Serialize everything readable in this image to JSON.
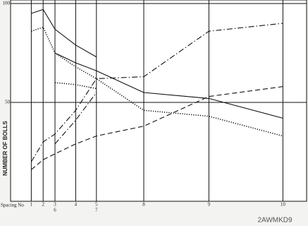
{
  "chart_data": {
    "type": "line",
    "y_label": "NUMBER OF BOLLS",
    "x_label": "Spacing No",
    "xlim": [
      0,
      100
    ],
    "ylim": [
      0,
      100
    ],
    "xticks": [
      {
        "value": 7,
        "label": "1"
      },
      {
        "value": 11,
        "label": "2"
      },
      {
        "value": 15,
        "label": "3"
      },
      {
        "value": 22,
        "label": "4"
      },
      {
        "value": 29,
        "label": "5"
      },
      {
        "value": 45,
        "label": "8"
      },
      {
        "value": 67,
        "label": "9"
      },
      {
        "value": 92,
        "label": "10"
      }
    ],
    "xticks_secondary": [
      {
        "value": 15,
        "label": "6"
      },
      {
        "value": 29,
        "label": "7"
      }
    ],
    "yticks": [
      50,
      100
    ],
    "grid": true,
    "series": [
      {
        "style": "solid",
        "color": "#111",
        "x": [
          7,
          11,
          15,
          22,
          29
        ],
        "values": [
          95,
          97,
          87,
          79,
          73
        ]
      },
      {
        "style": "solid",
        "color": "#111",
        "x": [
          15,
          22,
          29,
          45,
          67,
          92
        ],
        "values": [
          75,
          70,
          66,
          55,
          52,
          42
        ]
      },
      {
        "style": "dotted",
        "color": "#111",
        "x": [
          7,
          11,
          15,
          22,
          29,
          45,
          67,
          92
        ],
        "values": [
          86,
          88,
          75,
          68,
          62,
          46,
          43,
          33
        ]
      },
      {
        "style": "dotted",
        "color": "#111",
        "x": [
          15,
          22,
          29
        ],
        "values": [
          60,
          59,
          57
        ]
      },
      {
        "style": "dashdot",
        "color": "#111",
        "x": [
          7,
          11,
          15,
          22,
          29,
          45,
          67,
          92
        ],
        "values": [
          20,
          30,
          34,
          46,
          62,
          63,
          86,
          90
        ]
      },
      {
        "style": "dashdot",
        "color": "#111",
        "x": [
          15,
          22,
          29
        ],
        "values": [
          29,
          41,
          55
        ]
      },
      {
        "style": "dashed",
        "color": "#111",
        "x": [
          7,
          11,
          15,
          22,
          29,
          45,
          67,
          92
        ],
        "values": [
          16,
          21,
          24,
          29,
          33,
          38,
          53,
          58
        ]
      }
    ]
  },
  "watermark": "2AWMKD9"
}
